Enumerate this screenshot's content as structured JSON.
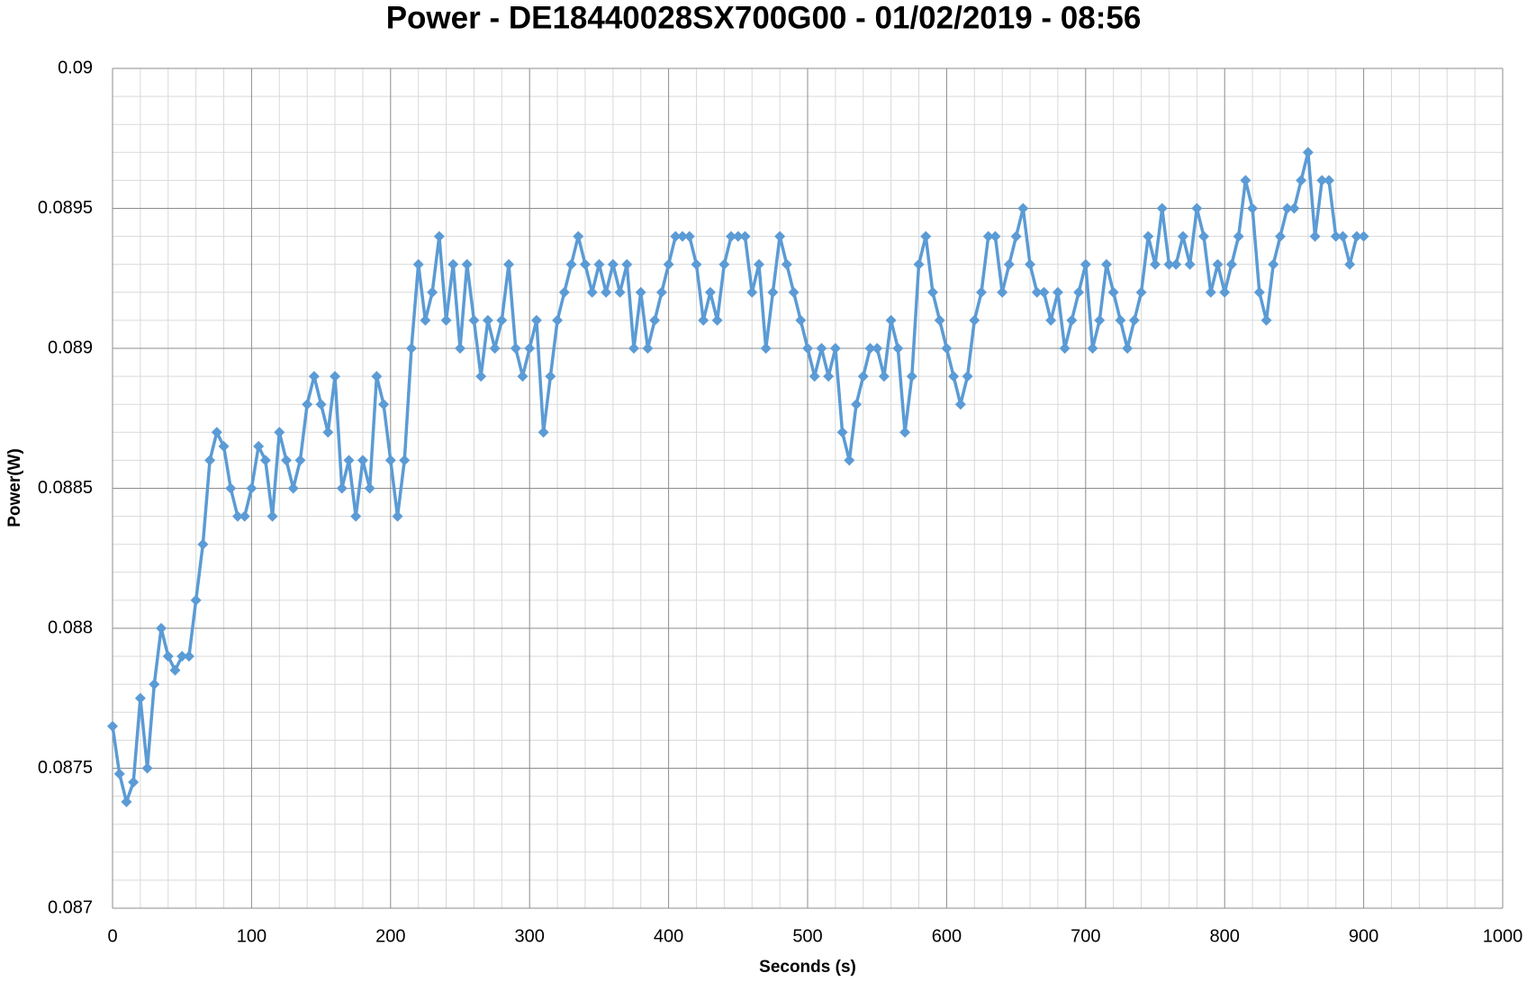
{
  "chart_data": {
    "type": "line",
    "title": "Power - DE18440028SX700G00 - 01/02/2019 - 08:56",
    "x_label": "Seconds (s)",
    "y_label": "Power(W)",
    "xlim": [
      0,
      1000
    ],
    "xticks": [
      0,
      100,
      200,
      300,
      400,
      500,
      600,
      700,
      800,
      900,
      1000
    ],
    "ylim": [
      0.087,
      0.09
    ],
    "yticks": [
      0.087,
      0.0875,
      0.088,
      0.0885,
      0.089,
      0.0895,
      0.09
    ],
    "grid": true,
    "marker": "diamond",
    "series": [
      {
        "color": "#5b9bd5",
        "x": [
          0,
          5,
          10,
          15,
          20,
          25,
          30,
          35,
          40,
          45,
          50,
          55,
          60,
          65,
          70,
          75,
          80,
          85,
          90,
          95,
          100,
          105,
          110,
          115,
          120,
          125,
          130,
          135,
          140,
          145,
          150,
          155,
          160,
          165,
          170,
          175,
          180,
          185,
          190,
          195,
          200,
          205,
          210,
          215,
          220,
          225,
          230,
          235,
          240,
          245,
          250,
          255,
          260,
          265,
          270,
          275,
          280,
          285,
          290,
          295,
          300,
          305,
          310,
          315,
          320,
          325,
          330,
          335,
          340,
          345,
          350,
          355,
          360,
          365,
          370,
          375,
          380,
          385,
          390,
          395,
          400,
          405,
          410,
          415,
          420,
          425,
          430,
          435,
          440,
          445,
          450,
          455,
          460,
          465,
          470,
          475,
          480,
          485,
          490,
          495,
          500,
          505,
          510,
          515,
          520,
          525,
          530,
          535,
          540,
          545,
          550,
          555,
          560,
          565,
          570,
          575,
          580,
          585,
          590,
          595,
          600,
          605,
          610,
          615,
          620,
          625,
          630,
          635,
          640,
          645,
          650,
          655,
          660,
          665,
          670,
          675,
          680,
          685,
          690,
          695,
          700,
          705,
          710,
          715,
          720,
          725,
          730,
          735,
          740,
          745,
          750,
          755,
          760,
          765,
          770,
          775,
          780,
          785,
          790,
          795,
          800,
          805,
          810,
          815,
          820,
          825,
          830,
          835,
          840,
          845,
          850,
          855,
          860,
          865,
          870,
          875,
          880,
          885,
          890,
          895,
          900
        ],
        "values": [
          0.08765,
          0.08748,
          0.08738,
          0.08745,
          0.08775,
          0.0875,
          0.0878,
          0.088,
          0.0879,
          0.08785,
          0.0879,
          0.0879,
          0.0881,
          0.0883,
          0.0886,
          0.0887,
          0.08865,
          0.0885,
          0.0884,
          0.0884,
          0.0885,
          0.08865,
          0.0886,
          0.0884,
          0.0887,
          0.0886,
          0.0885,
          0.0886,
          0.0888,
          0.0889,
          0.0888,
          0.0887,
          0.0889,
          0.0885,
          0.0886,
          0.0884,
          0.0886,
          0.0885,
          0.0889,
          0.0888,
          0.0886,
          0.0884,
          0.0886,
          0.089,
          0.0893,
          0.0891,
          0.0892,
          0.0894,
          0.0891,
          0.0893,
          0.089,
          0.0893,
          0.0891,
          0.0889,
          0.0891,
          0.089,
          0.0891,
          0.0893,
          0.089,
          0.0889,
          0.089,
          0.0891,
          0.0887,
          0.0889,
          0.0891,
          0.0892,
          0.0893,
          0.0894,
          0.0893,
          0.0892,
          0.0893,
          0.0892,
          0.0893,
          0.0892,
          0.0893,
          0.089,
          0.0892,
          0.089,
          0.0891,
          0.0892,
          0.0893,
          0.0894,
          0.0894,
          0.0894,
          0.0893,
          0.0891,
          0.0892,
          0.0891,
          0.0893,
          0.0894,
          0.0894,
          0.0894,
          0.0892,
          0.0893,
          0.089,
          0.0892,
          0.0894,
          0.0893,
          0.0892,
          0.0891,
          0.089,
          0.0889,
          0.089,
          0.0889,
          0.089,
          0.0887,
          0.0886,
          0.0888,
          0.0889,
          0.089,
          0.089,
          0.0889,
          0.0891,
          0.089,
          0.0887,
          0.0889,
          0.0893,
          0.0894,
          0.0892,
          0.0891,
          0.089,
          0.0889,
          0.0888,
          0.0889,
          0.0891,
          0.0892,
          0.0894,
          0.0894,
          0.0892,
          0.0893,
          0.0894,
          0.0895,
          0.0893,
          0.0892,
          0.0892,
          0.0891,
          0.0892,
          0.089,
          0.0891,
          0.0892,
          0.0893,
          0.089,
          0.0891,
          0.0893,
          0.0892,
          0.0891,
          0.089,
          0.0891,
          0.0892,
          0.0894,
          0.0893,
          0.0895,
          0.0893,
          0.0893,
          0.0894,
          0.0893,
          0.0895,
          0.0894,
          0.0892,
          0.0893,
          0.0892,
          0.0893,
          0.0894,
          0.0896,
          0.0895,
          0.0892,
          0.0891,
          0.0893,
          0.0894,
          0.0895,
          0.0895,
          0.0896,
          0.0897,
          0.0894,
          0.0896,
          0.0896,
          0.0894,
          0.0894,
          0.0893,
          0.0894,
          0.0894
        ]
      }
    ]
  }
}
